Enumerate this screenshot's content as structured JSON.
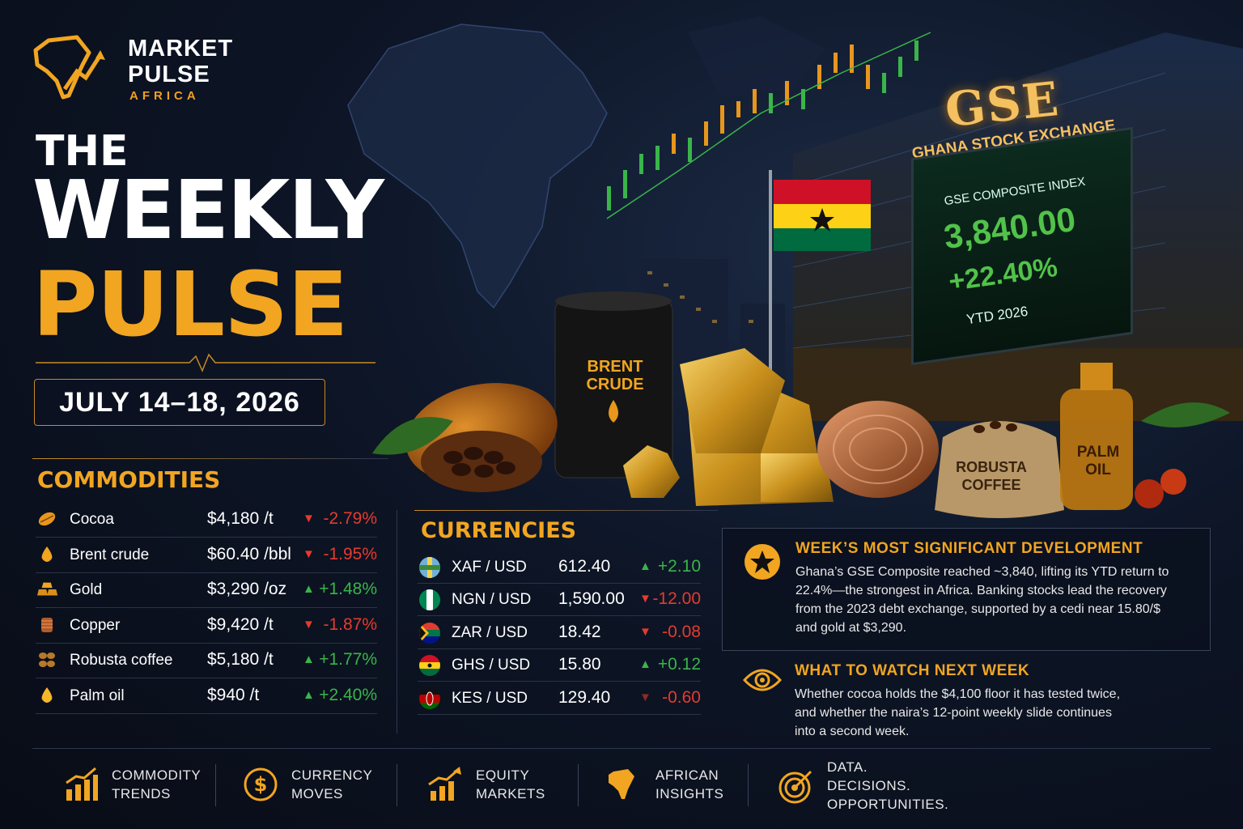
{
  "brand": {
    "line1": "MARKET",
    "line2": "PULSE",
    "line3": "AFRICA"
  },
  "title": {
    "line1": "THE",
    "line2": "WEEKLY",
    "line3": "PULSE"
  },
  "date_range": "JULY 14–18, 2026",
  "scene": {
    "gse_logo": "GSE",
    "gse_name": "GHANA STOCK EXCHANGE",
    "board_title": "GSE COMPOSITE INDEX",
    "board_value": "3,840.00",
    "board_change": "+22.40%",
    "board_period": "YTD 2026",
    "barrel_label": "BRENT CRUDE",
    "coffee_label": "ROBUSTA COFFEE",
    "palm_label": "PALM OIL"
  },
  "commodities": {
    "heading": "COMMODITIES",
    "rows": [
      {
        "icon": "cocoa-icon",
        "name": "Cocoa",
        "price": "$4,180 /t",
        "dir": "down",
        "change": "-2.79%"
      },
      {
        "icon": "oil-drop-icon",
        "name": "Brent crude",
        "price": "$60.40 /bbl",
        "dir": "down",
        "change": "-1.95%"
      },
      {
        "icon": "gold-bars-icon",
        "name": "Gold",
        "price": "$3,290 /oz",
        "dir": "up",
        "change": "+1.48%"
      },
      {
        "icon": "copper-coil-icon",
        "name": "Copper",
        "price": "$9,420 /t",
        "dir": "down",
        "change": "-1.87%"
      },
      {
        "icon": "coffee-beans-icon",
        "name": "Robusta coffee",
        "price": "$5,180 /t",
        "dir": "up",
        "change": "+1.77%"
      },
      {
        "icon": "palm-oil-drop-icon",
        "name": "Palm oil",
        "price": "$940 /t",
        "dir": "up",
        "change": "+2.40%"
      }
    ]
  },
  "currencies": {
    "heading": "CURRENCIES",
    "rows": [
      {
        "flag": "cemac-flag-icon",
        "pair": "XAF / USD",
        "value": "612.40",
        "dir": "up",
        "change": "+2.10"
      },
      {
        "flag": "nigeria-flag-icon",
        "pair": "NGN / USD",
        "value": "1,590.00",
        "dir": "down",
        "change": "-12.00"
      },
      {
        "flag": "south-africa-flag-icon",
        "pair": "ZAR / USD",
        "value": "18.42",
        "dir": "down",
        "change": "-0.08"
      },
      {
        "flag": "ghana-flag-icon",
        "pair": "GHS / USD",
        "value": "15.80",
        "dir": "up",
        "change": "+0.12"
      },
      {
        "flag": "kenya-flag-icon",
        "pair": "KES / USD",
        "value": "129.40",
        "dir": "down-dark",
        "change": "-0.60"
      }
    ]
  },
  "development": {
    "icon": "star-icon",
    "title": "WEEK’S MOST SIGNIFICANT DEVELOPMENT",
    "lines": [
      "Ghana’s GSE Composite reached ~3,840, lifting its YTD return to",
      "22.4%—the strongest in Africa. Banking stocks lead the recovery",
      "from the 2023 debt exchange, supported by a cedi near 15.80/$",
      "and gold at $3,290."
    ]
  },
  "watch": {
    "icon": "eye-icon",
    "title": "WHAT TO WATCH NEXT WEEK",
    "lines": [
      "Whether cocoa holds the $4,100 floor it has tested twice,",
      "and whether the naira’s 12-point weekly slide continues",
      "into a second week."
    ]
  },
  "footer": [
    {
      "icon": "bar-chart-icon",
      "l1": "COMMODITY",
      "l2": "TRENDS"
    },
    {
      "icon": "dollar-circle-icon",
      "l1": "CURRENCY",
      "l2": "MOVES"
    },
    {
      "icon": "growth-chart-icon",
      "l1": "EQUITY",
      "l2": "MARKETS"
    },
    {
      "icon": "africa-map-icon",
      "l1": "AFRICAN",
      "l2": "INSIGHTS"
    },
    {
      "icon": "target-icon",
      "l1": "DATA.",
      "l2": "DECISIONS.",
      "l3": "OPPORTUNITIES."
    }
  ],
  "colors": {
    "accent": "#f1a521",
    "up": "#39b54a",
    "down": "#e53b2e",
    "background": "#0d1526"
  }
}
